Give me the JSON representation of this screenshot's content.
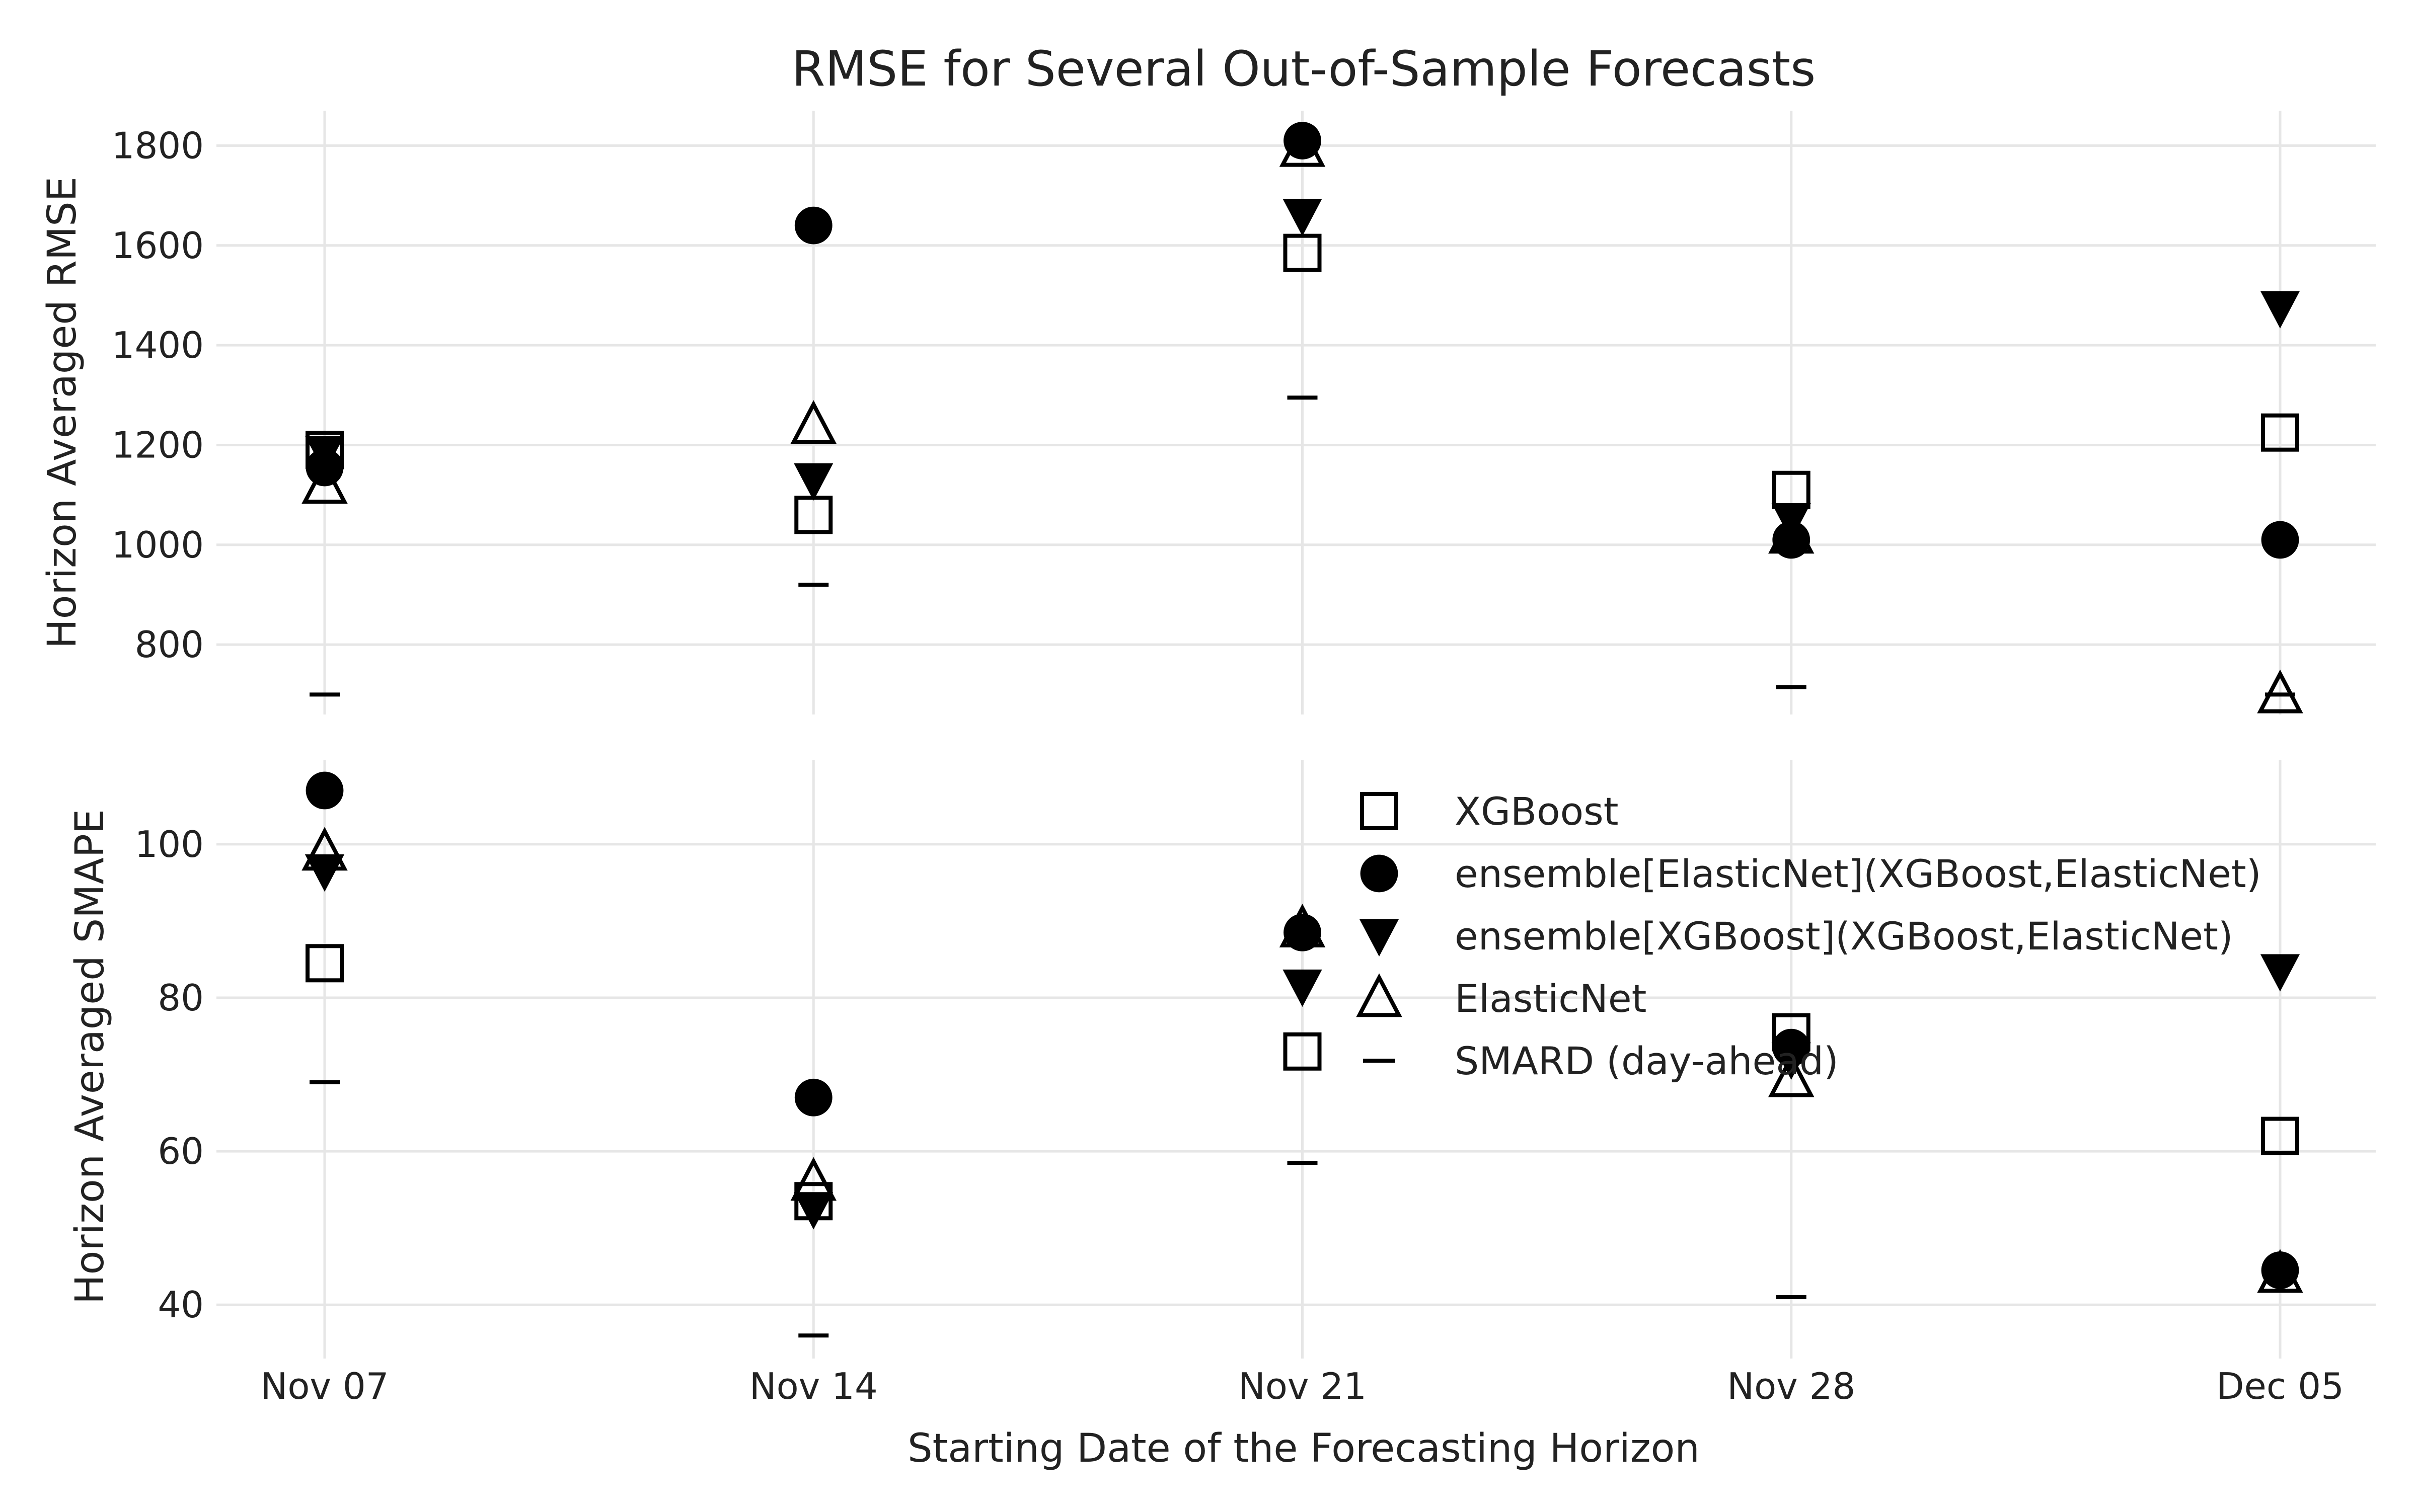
{
  "chart_data": {
    "type": "scatter",
    "title": "RMSE for Several Out-of-Sample Forecasts",
    "xlabel": "Starting Date of the Forecasting Horizon",
    "categories": [
      "Nov 07",
      "Nov 14",
      "Nov 21",
      "Nov 28",
      "Dec 05"
    ],
    "legend": {
      "placement": "upper-right of bottom panel"
    },
    "grid": true,
    "series_meta": [
      {
        "name": "XGBoost",
        "marker": "square-open"
      },
      {
        "name": "ensemble[ElasticNet](XGBoost,ElasticNet)",
        "marker": "circle-filled"
      },
      {
        "name": "ensemble[XGBoost](XGBoost,ElasticNet)",
        "marker": "triangle-down-filled"
      },
      {
        "name": "ElasticNet",
        "marker": "triangle-up-open"
      },
      {
        "name": "SMARD (day-ahead)",
        "marker": "hline"
      }
    ],
    "panels": [
      {
        "ylabel": "Horizon Averaged RMSE",
        "ylim": [
          660,
          1870
        ],
        "yticks": [
          800,
          1000,
          1200,
          1400,
          1600,
          1800
        ],
        "series": [
          {
            "name": "XGBoost",
            "values": [
              1190,
              1060,
              1585,
              1110,
              1225
            ]
          },
          {
            "name": "ensemble[ElasticNet](XGBoost,ElasticNet)",
            "values": [
              1155,
              1640,
              1810,
              1010,
              1010
            ]
          },
          {
            "name": "ensemble[XGBoost](XGBoost,ElasticNet)",
            "values": [
              1185,
              1130,
              1660,
              1050,
              1475
            ]
          },
          {
            "name": "ElasticNet",
            "values": [
              1120,
              1240,
              1795,
              1020,
              700
            ]
          },
          {
            "name": "SMARD (day-ahead)",
            "values": [
              700,
              920,
              1295,
              715,
              700
            ]
          }
        ]
      },
      {
        "ylabel": "Horizon Averaged SMAPE",
        "ylim": [
          33,
          111
        ],
        "yticks": [
          40,
          60,
          80,
          100
        ],
        "series": [
          {
            "name": "XGBoost",
            "values": [
              84.5,
              53.5,
              73,
              75.5,
              62
            ]
          },
          {
            "name": "ensemble[ElasticNet](XGBoost,ElasticNet)",
            "values": [
              107,
              67,
              88.5,
              73.5,
              44.5
            ]
          },
          {
            "name": "ensemble[XGBoost](XGBoost,ElasticNet)",
            "values": [
              96.5,
              52.5,
              81.5,
              72,
              83.5
            ]
          },
          {
            "name": "ElasticNet",
            "values": [
              99,
              56,
              89,
              69.5,
              44
            ]
          },
          {
            "name": "SMARD (day-ahead)",
            "values": [
              69,
              36,
              58.5,
              41,
              44
            ]
          }
        ]
      }
    ]
  }
}
